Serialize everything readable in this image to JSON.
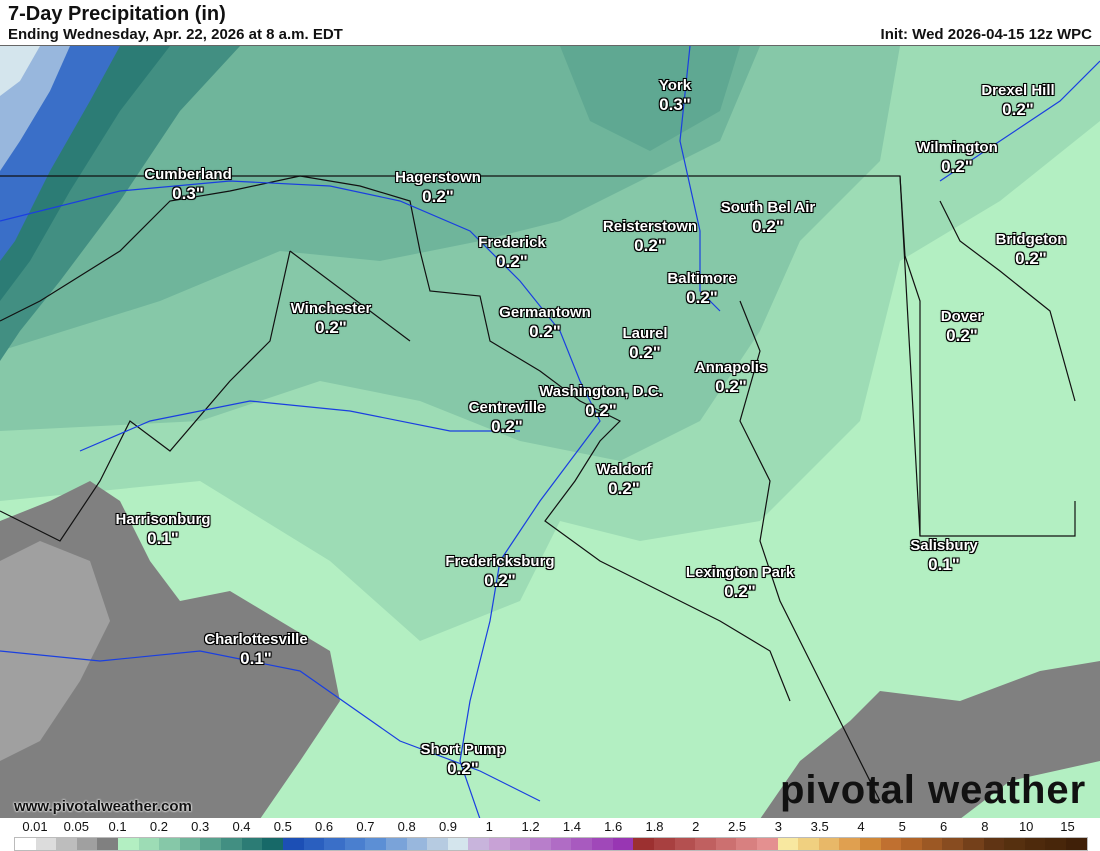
{
  "header": {
    "title": "7-Day Precipitation (in)",
    "subtitle": "Ending Wednesday, Apr. 22, 2026 at 8 a.m. EDT",
    "init": "Init: Wed 2026-04-15 12z WPC"
  },
  "cities": [
    {
      "name": "York",
      "value": "0.3\""
    },
    {
      "name": "Drexel Hill",
      "value": "0.2\""
    },
    {
      "name": "Wilmington",
      "value": "0.2\""
    },
    {
      "name": "Cumberland",
      "value": "0.3\""
    },
    {
      "name": "Hagerstown",
      "value": "0.2\""
    },
    {
      "name": "South Bel Air",
      "value": "0.2\""
    },
    {
      "name": "Reisterstown",
      "value": "0.2\""
    },
    {
      "name": "Bridgeton",
      "value": "0.2\""
    },
    {
      "name": "Frederick",
      "value": "0.2\""
    },
    {
      "name": "Baltimore",
      "value": "0.2\""
    },
    {
      "name": "Winchester",
      "value": "0.2\""
    },
    {
      "name": "Germantown",
      "value": "0.2\""
    },
    {
      "name": "Dover",
      "value": "0.2\""
    },
    {
      "name": "Laurel",
      "value": "0.2\""
    },
    {
      "name": "Annapolis",
      "value": "0.2\""
    },
    {
      "name": "Washington, D.C.",
      "value": "0.2\""
    },
    {
      "name": "Centreville",
      "value": "0.2\""
    },
    {
      "name": "Waldorf",
      "value": "0.2\""
    },
    {
      "name": "Harrisonburg",
      "value": "0.1\""
    },
    {
      "name": "Salisbury",
      "value": "0.1\""
    },
    {
      "name": "Fredericksburg",
      "value": "0.2\""
    },
    {
      "name": "Lexington Park",
      "value": "0.2\""
    },
    {
      "name": "Charlottesville",
      "value": "0.1\""
    },
    {
      "name": "Short Pump",
      "value": "0.2\""
    }
  ],
  "footer": {
    "website": "www.pivotalweather.com",
    "logo": "pivotal weather"
  },
  "colorbar": {
    "labels": [
      "0.01",
      "0.05",
      "0.1",
      "0.2",
      "0.3",
      "0.4",
      "0.5",
      "0.6",
      "0.7",
      "0.8",
      "0.9",
      "1",
      "1.2",
      "1.4",
      "1.6",
      "1.8",
      "2",
      "2.5",
      "3",
      "3.5",
      "4",
      "5",
      "6",
      "8",
      "10",
      "15"
    ],
    "colors": [
      "#ffffff",
      "#dcdcdc",
      "#bdbdbd",
      "#a0a0a0",
      "#808080",
      "#b3efc2",
      "#9ddcb5",
      "#86c8a8",
      "#6fb59b",
      "#58a28e",
      "#428f82",
      "#2c7c75",
      "#176968",
      "#1c4fb5",
      "#2a5fbf",
      "#3a6fc8",
      "#4a7fcf",
      "#5c8fd5",
      "#7aa3d9",
      "#98b7dd",
      "#b6cbe1",
      "#d4e5ed",
      "#c8b4dc",
      "#c8a2d6",
      "#c090d0",
      "#b87ecb",
      "#b06cc5",
      "#a85abf",
      "#a048b9",
      "#9836b3",
      "#9c3030",
      "#a84040",
      "#b45050",
      "#c06060",
      "#cc7070",
      "#d88080",
      "#e49090",
      "#f8e8a0",
      "#f0d080",
      "#e8b868",
      "#e0a050",
      "#d08838",
      "#c07030",
      "#b06428",
      "#9c5824",
      "#884c20",
      "#74401a",
      "#603414",
      "#56300f",
      "#4e2a0c",
      "#48260a",
      "#402008"
    ]
  },
  "map_colors": {
    "base": "#b3efc2",
    "light_green": "#9ddcb5",
    "mid_green": "#86c8a8",
    "dark_green": "#6fb59b",
    "teal": "#428f82",
    "blue": "#2a5fbf",
    "grey": "#808080",
    "light_grey": "#a0a0a0",
    "river": "#1a3fe0"
  }
}
